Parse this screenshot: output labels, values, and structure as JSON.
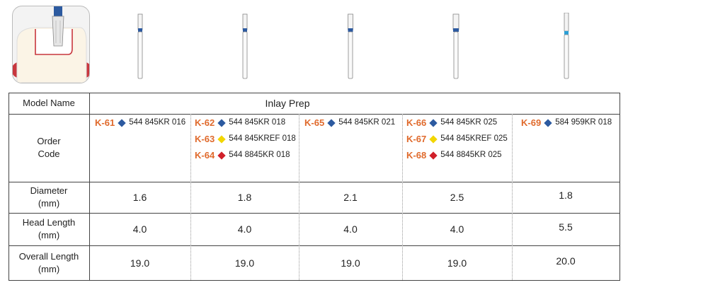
{
  "illustration": {
    "colors": {
      "gum": "#c8363d",
      "tooth": "#fbf4e6",
      "bur_band": "#2c5aa0",
      "bur_band_k69": "#2a9fd6"
    },
    "burs": [
      "K-61",
      "K-62",
      "K-65",
      "K-66",
      "K-69"
    ]
  },
  "table": {
    "row_headers": {
      "model": "Model Name",
      "order_1": "Order",
      "order_2": "Code",
      "diameter_1": "Diameter",
      "diameter_2": "(mm)",
      "head_1": "Head Length",
      "head_2": "(mm)",
      "overall_1": "Overall Length",
      "overall_2": "(mm)"
    },
    "model_name": "Inlay Prep",
    "columns": [
      {
        "codes": [
          {
            "id": "K-61",
            "color": "#2c5aa0",
            "ref": "544 845KR 016"
          }
        ],
        "diameter": "1.6",
        "head": "4.0",
        "overall": "19.0"
      },
      {
        "codes": [
          {
            "id": "K-62",
            "color": "#2c5aa0",
            "ref": "544 845KR 018"
          },
          {
            "id": "K-63",
            "color": "#f2d600",
            "ref": "544 845KREF 018"
          },
          {
            "id": "K-64",
            "color": "#d0202a",
            "ref": "544 8845KR 018"
          }
        ],
        "diameter": "1.8",
        "head": "4.0",
        "overall": "19.0"
      },
      {
        "codes": [
          {
            "id": "K-65",
            "color": "#2c5aa0",
            "ref": "544 845KR 021"
          }
        ],
        "diameter": "2.1",
        "head": "4.0",
        "overall": "19.0"
      },
      {
        "codes": [
          {
            "id": "K-66",
            "color": "#2c5aa0",
            "ref": "544 845KR 025"
          },
          {
            "id": "K-67",
            "color": "#f2d600",
            "ref": "544 845KREF 025"
          },
          {
            "id": "K-68",
            "color": "#d0202a",
            "ref": "544 8845KR 025"
          }
        ],
        "diameter": "2.5",
        "head": "4.0",
        "overall": "19.0"
      },
      {
        "codes": [
          {
            "id": "K-69",
            "color": "#2c5aa0",
            "ref": "584 959KR 018"
          }
        ],
        "diameter": "1.8",
        "head": "5.5",
        "overall": "20.0"
      }
    ]
  }
}
